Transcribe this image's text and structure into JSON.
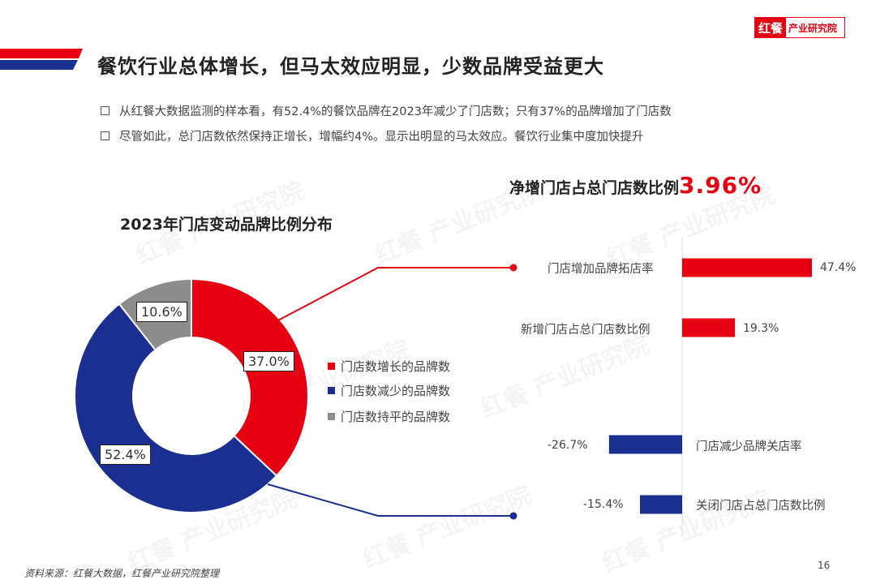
{
  "header": {
    "logo_mark": "红餐",
    "logo_text": "产业研究院",
    "title": "餐饮行业总体增长，但马太效应明显，少数品牌受益更大"
  },
  "bullets": [
    "从红餐大数据监测的样本看，有52.4%的餐饮品牌在2023年减少了门店数；只有37%的品牌增加了门店数",
    "尽管如此，总门店数依然保持正增长，增幅约4%。显示出明显的马太效应。餐饮行业集中度加快提升"
  ],
  "colors": {
    "red": "#e60012",
    "blue": "#1a2f8f",
    "gray": "#8c8c8c",
    "accent": "#e60012"
  },
  "chart_data": [
    {
      "type": "pie",
      "title": "2023年门店变动品牌比例分布",
      "slices": [
        {
          "name": "门店数增长的品牌数",
          "value": 37.0,
          "label": "37.0%",
          "color": "#e60012"
        },
        {
          "name": "门店数减少的品牌数",
          "value": 52.4,
          "label": "52.4%",
          "color": "#1a2f8f"
        },
        {
          "name": "门店数持平的品牌数",
          "value": 10.6,
          "label": "10.6%",
          "color": "#8c8c8c"
        }
      ],
      "legend": "right"
    },
    {
      "type": "bar",
      "orientation": "horizontal",
      "title": "净增门店占总门店数比例",
      "title_value": "3.96%",
      "categories": [
        "门店增加品牌拓店率",
        "新增门店占总门店数比例",
        "门店减少品牌关店率",
        "关闭门店占总门店数比例"
      ],
      "values": [
        47.4,
        19.3,
        -26.7,
        -15.4
      ],
      "value_labels": [
        "47.4%",
        "19.3%",
        "-26.7%",
        "-15.4%"
      ],
      "colors": [
        "#e60012",
        "#e60012",
        "#1a2f8f",
        "#1a2f8f"
      ]
    }
  ],
  "footer": {
    "source": "资料来源：红餐大数据，红餐产业研究院整理",
    "page_number": "16"
  },
  "watermark": {
    "mark": "红餐",
    "text": "产业研究院"
  }
}
